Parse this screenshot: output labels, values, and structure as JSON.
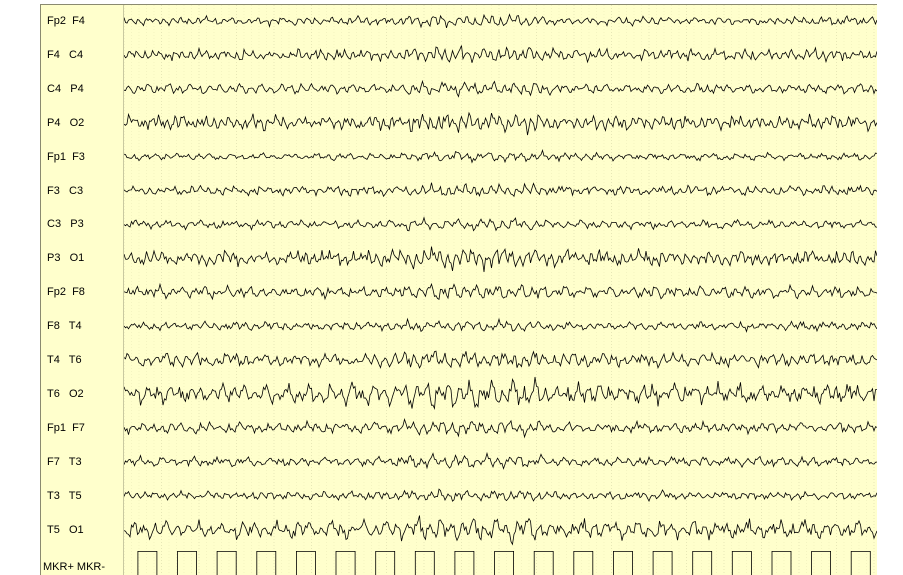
{
  "channels": [
    {
      "name": "Fp2  F4",
      "amp": 3.5
    },
    {
      "name": "F4   C4",
      "amp": 5.0
    },
    {
      "name": "C4   P4",
      "amp": 4.0
    },
    {
      "name": "P4   O2",
      "amp": 6.0
    },
    {
      "name": "Fp1  F3",
      "amp": 3.0
    },
    {
      "name": "F3   C3",
      "amp": 4.0
    },
    {
      "name": "C3   P3",
      "amp": 3.5
    },
    {
      "name": "P3   O1",
      "amp": 6.5
    },
    {
      "name": "Fp2  F8",
      "amp": 5.0
    },
    {
      "name": "F8   T4",
      "amp": 3.5
    },
    {
      "name": "T4   T6",
      "amp": 5.5
    },
    {
      "name": "T6   O2",
      "amp": 8.5
    },
    {
      "name": "Fp1  F7",
      "amp": 4.5
    },
    {
      "name": "F7   T3",
      "amp": 4.0
    },
    {
      "name": "T3   T5",
      "amp": 3.5
    },
    {
      "name": "T5   O1",
      "amp": 7.5
    }
  ],
  "marker": {
    "name": "MKR+ MKR-",
    "pulse_count": 19,
    "baseline_color": "#33d6d6"
  },
  "colors": {
    "background": "#ffffcc",
    "grid": "#d8d8a8",
    "trace": "#000000"
  }
}
